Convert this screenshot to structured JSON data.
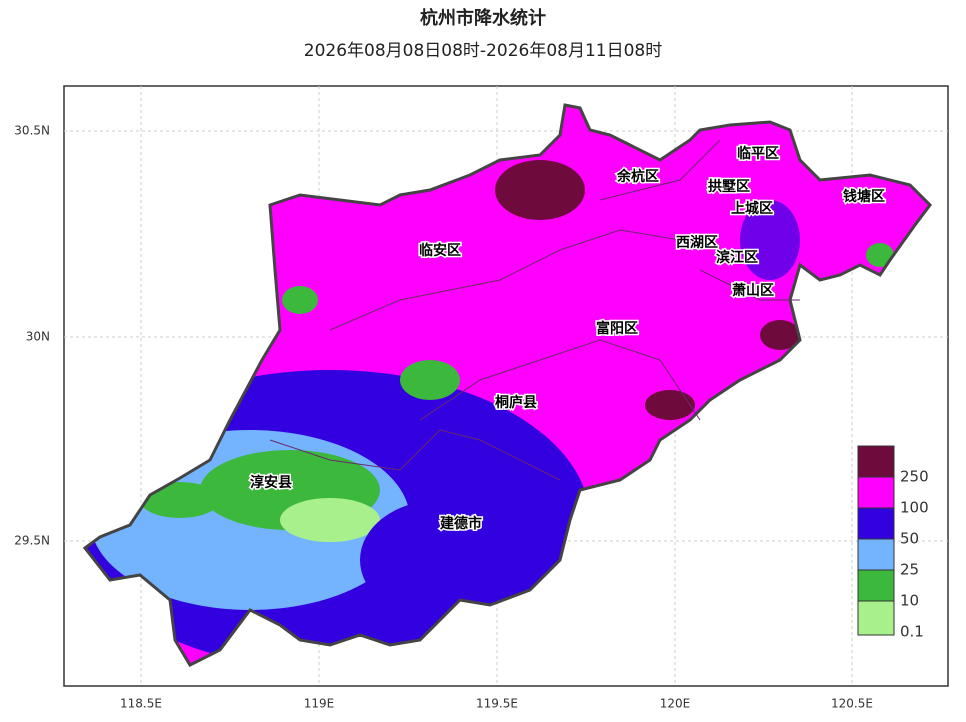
{
  "header": {
    "title": "杭州市降水统计",
    "subtitle": "2026年08月08日08时-2026年08月11日08时"
  },
  "axes": {
    "x_ticks": [
      "118.5E",
      "119E",
      "119.5E",
      "120E",
      "120.5E"
    ],
    "y_ticks": [
      "30.5N",
      "30N",
      "29.5N"
    ]
  },
  "districts": [
    "临安区",
    "余杭区",
    "临平区",
    "拱墅区",
    "上城区",
    "钱塘区",
    "西湖区",
    "滨江区",
    "萧山区",
    "富阳区",
    "桐庐县",
    "淳安县",
    "建德市"
  ],
  "legend": {
    "labels": [
      "250",
      "100",
      "50",
      "25",
      "10",
      "0.1"
    ]
  }
}
